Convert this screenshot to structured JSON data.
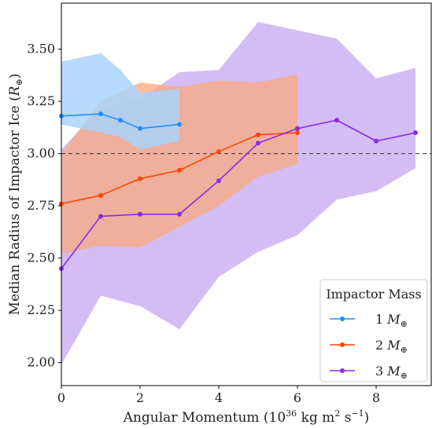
{
  "chart_data": {
    "type": "line",
    "xlabel": "Angular Momentum (10",
    "xlabel_exp": "36",
    "xlabel_unit": " kg m",
    "xlabel_unit_exp": "2",
    "xlabel_tail": " s",
    "xlabel_tail_exp": "−1",
    "xlabel_close": ")",
    "ylabel": "Median Radius of Impactor Ice (",
    "ylabel_sym": "R",
    "ylabel_sub": "⊕",
    "ylabel_close": ")",
    "xlim": [
      0,
      9.4
    ],
    "ylim": [
      1.89,
      3.72
    ],
    "x_ticks": [
      0,
      2,
      4,
      6,
      8
    ],
    "y_ticks": [
      2.0,
      2.25,
      2.5,
      2.75,
      3.0,
      3.25,
      3.5
    ],
    "x_tick_labels": [
      "0",
      "2",
      "4",
      "6",
      "8"
    ],
    "y_tick_labels": [
      "2.00",
      "2.25",
      "2.50",
      "2.75",
      "3.00",
      "3.25",
      "3.50"
    ],
    "reference_line": {
      "y": 3.0,
      "style": "dashed",
      "color": "#333333"
    },
    "legend": {
      "title": "Impactor Mass",
      "placement": "bottom-right"
    },
    "series": [
      {
        "name": "1 M⊕",
        "name_num": "1",
        "name_sym": "M",
        "name_sub": "⊕",
        "color": "#1f8fff",
        "band_color": "#a9d2fb",
        "x": [
          0,
          1,
          1.5,
          2,
          3
        ],
        "y": [
          3.18,
          3.19,
          3.16,
          3.12,
          3.14
        ],
        "band_upper": [
          3.44,
          3.48,
          3.4,
          3.29,
          3.31
        ],
        "band_lower": [
          3.14,
          3.1,
          3.08,
          3.02,
          3.06
        ]
      },
      {
        "name": "2 M⊕",
        "name_num": "2",
        "name_sym": "M",
        "name_sub": "⊕",
        "color": "#ff4500",
        "band_color": "#f9a97f",
        "x": [
          0,
          1,
          2,
          3,
          4,
          5,
          6
        ],
        "y": [
          2.76,
          2.8,
          2.88,
          2.92,
          3.01,
          3.09,
          3.1
        ],
        "band_upper": [
          3.0,
          3.25,
          3.34,
          3.32,
          3.35,
          3.34,
          3.38
        ],
        "band_lower": [
          2.52,
          2.56,
          2.55,
          2.65,
          2.75,
          2.89,
          2.95
        ]
      },
      {
        "name": "3 M⊕",
        "name_num": "3",
        "name_sym": "M",
        "name_sub": "⊕",
        "color": "#8a2be2",
        "band_color": "#c6a6f2",
        "x": [
          0,
          1,
          2,
          3,
          4,
          5,
          6,
          7,
          8,
          9
        ],
        "y": [
          2.45,
          2.7,
          2.71,
          2.71,
          2.87,
          3.05,
          3.12,
          3.16,
          3.06,
          3.1
        ],
        "band_upper": [
          3.02,
          3.22,
          3.26,
          3.39,
          3.4,
          3.63,
          3.59,
          3.55,
          3.36,
          3.41
        ],
        "band_lower": [
          1.99,
          2.32,
          2.27,
          2.16,
          2.41,
          2.53,
          2.61,
          2.78,
          2.82,
          2.93
        ]
      }
    ]
  }
}
